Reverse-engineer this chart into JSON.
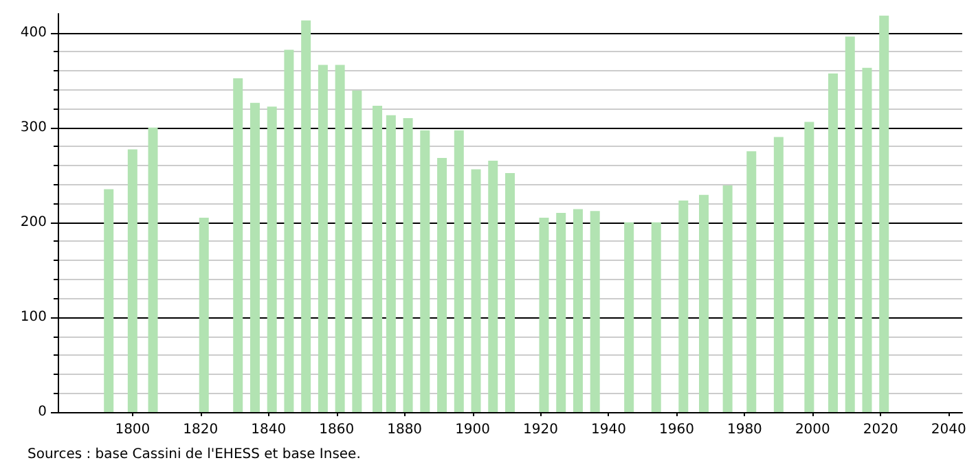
{
  "chart_data": {
    "type": "bar",
    "x": [
      1793,
      1800,
      1806,
      1821,
      1831,
      1836,
      1841,
      1846,
      1851,
      1856,
      1861,
      1866,
      1872,
      1876,
      1881,
      1886,
      1891,
      1896,
      1901,
      1906,
      1911,
      1921,
      1926,
      1931,
      1936,
      1946,
      1954,
      1962,
      1968,
      1975,
      1982,
      1990,
      1999,
      2006,
      2011,
      2016,
      2021
    ],
    "values": [
      235,
      277,
      300,
      205,
      352,
      326,
      322,
      382,
      413,
      366,
      366,
      339,
      323,
      313,
      310,
      297,
      268,
      297,
      256,
      265,
      252,
      205,
      210,
      214,
      212,
      200,
      200,
      223,
      229,
      239,
      275,
      290,
      306,
      357,
      396,
      363,
      418
    ],
    "color": "#b2e3b2",
    "xlim": [
      1778,
      2044
    ],
    "xticks": [
      1800,
      1820,
      1840,
      1860,
      1880,
      1900,
      1920,
      1940,
      1960,
      1980,
      2000,
      2020,
      2040
    ],
    "ylim": [
      0,
      420
    ],
    "yticks": [
      0,
      100,
      200,
      300,
      400
    ],
    "grid": "y",
    "annotations": [
      "Sources : base Cassini de l'EHESS et base Insee."
    ]
  }
}
